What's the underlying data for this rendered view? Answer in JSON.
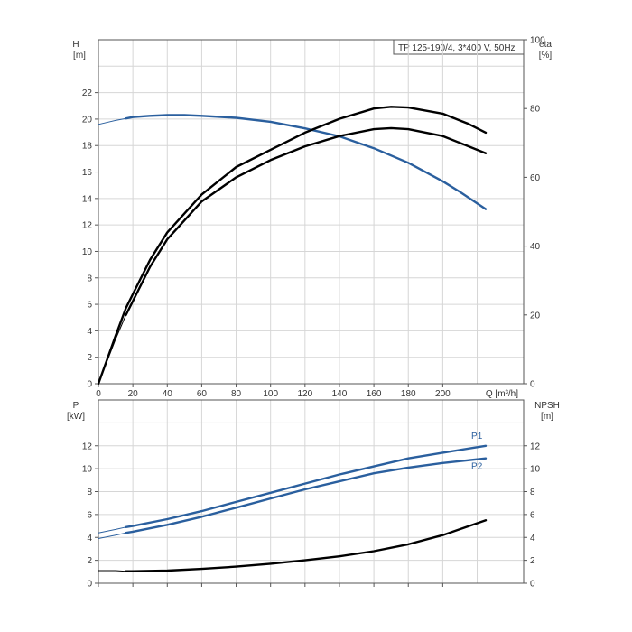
{
  "chart_data": [
    {
      "type": "line",
      "title": "TP 125-190/4, 3*400 V, 50Hz",
      "xlabel": "Q [m³/h]",
      "xlim": [
        0,
        247
      ],
      "xticks": [
        0,
        20,
        40,
        60,
        80,
        100,
        120,
        140,
        160,
        180,
        200
      ],
      "ylabel_left_name": "H",
      "ylabel_left_unit": "[m]",
      "ylim_left": [
        0,
        26
      ],
      "yticks_left": [
        0,
        2,
        4,
        6,
        8,
        10,
        12,
        14,
        16,
        18,
        20,
        22
      ],
      "ylabel_right_name": "eta",
      "ylabel_right_unit": "[%]",
      "ylim_right": [
        0,
        100
      ],
      "yticks_right": [
        0,
        20,
        40,
        60,
        80,
        100
      ],
      "grid": true,
      "series": [
        {
          "id": "H",
          "axis": "left",
          "color": "#2a5f9e",
          "x": [
            0,
            10,
            16,
            20,
            30,
            40,
            50,
            60,
            80,
            100,
            120,
            140,
            160,
            180,
            200,
            210,
            225
          ],
          "values": [
            19.6,
            19.9,
            20.05,
            20.15,
            20.25,
            20.3,
            20.3,
            20.25,
            20.1,
            19.8,
            19.3,
            18.7,
            17.8,
            16.7,
            15.3,
            14.5,
            13.2
          ],
          "thin_until": 16
        },
        {
          "id": "eta-1",
          "axis": "right",
          "color": "#000000",
          "x": [
            0,
            10,
            16,
            20,
            30,
            40,
            60,
            80,
            100,
            120,
            140,
            160,
            170,
            180,
            200,
            215,
            225
          ],
          "values": [
            0,
            13,
            20,
            24,
            34,
            42,
            53,
            60,
            65,
            69,
            72,
            74,
            74.3,
            74,
            72,
            69,
            67
          ],
          "thin_until": 16
        },
        {
          "id": "eta-2",
          "axis": "right",
          "color": "#000000",
          "x": [
            0,
            10,
            16,
            20,
            30,
            40,
            60,
            80,
            100,
            120,
            140,
            160,
            170,
            180,
            200,
            215,
            225
          ],
          "values": [
            0,
            14,
            22,
            26,
            36,
            44,
            55,
            63,
            68,
            73,
            77,
            80,
            80.5,
            80.3,
            78.5,
            75.5,
            73
          ],
          "thin_until": 0
        }
      ]
    },
    {
      "type": "line",
      "xlim": [
        0,
        247
      ],
      "ylabel_left_name": "P",
      "ylabel_left_unit": "[kW]",
      "ylim_left": [
        0,
        16
      ],
      "yticks_left": [
        0,
        2,
        4,
        6,
        8,
        10,
        12
      ],
      "ylabel_right_name": "NPSH",
      "ylabel_right_unit": "[m]",
      "ylim_right": [
        0,
        16
      ],
      "yticks_right": [
        0,
        2,
        4,
        6,
        8,
        10,
        12
      ],
      "grid": true,
      "series": [
        {
          "id": "P1",
          "name": "P1",
          "axis": "left",
          "color": "#2a5f9e",
          "x": [
            0,
            10,
            16,
            20,
            40,
            60,
            80,
            100,
            120,
            140,
            160,
            180,
            200,
            225
          ],
          "values": [
            4.4,
            4.7,
            4.9,
            5.0,
            5.6,
            6.3,
            7.1,
            7.9,
            8.7,
            9.5,
            10.2,
            10.9,
            11.4,
            12.0
          ],
          "thin_until": 16
        },
        {
          "id": "P2",
          "name": "P2",
          "axis": "left",
          "color": "#2a5f9e",
          "x": [
            0,
            10,
            16,
            20,
            40,
            60,
            80,
            100,
            120,
            140,
            160,
            180,
            200,
            225
          ],
          "values": [
            3.9,
            4.2,
            4.4,
            4.5,
            5.1,
            5.8,
            6.6,
            7.4,
            8.2,
            8.9,
            9.6,
            10.1,
            10.5,
            10.9
          ],
          "thin_until": 16
        },
        {
          "id": "NPSH",
          "axis": "right",
          "color": "#000000",
          "x": [
            0,
            10,
            16,
            20,
            40,
            60,
            80,
            100,
            120,
            140,
            160,
            180,
            200,
            225
          ],
          "values": [
            1.1,
            1.1,
            1.05,
            1.05,
            1.1,
            1.25,
            1.45,
            1.7,
            2.0,
            2.35,
            2.8,
            3.4,
            4.2,
            5.5
          ],
          "thin_until": 16
        }
      ]
    }
  ]
}
